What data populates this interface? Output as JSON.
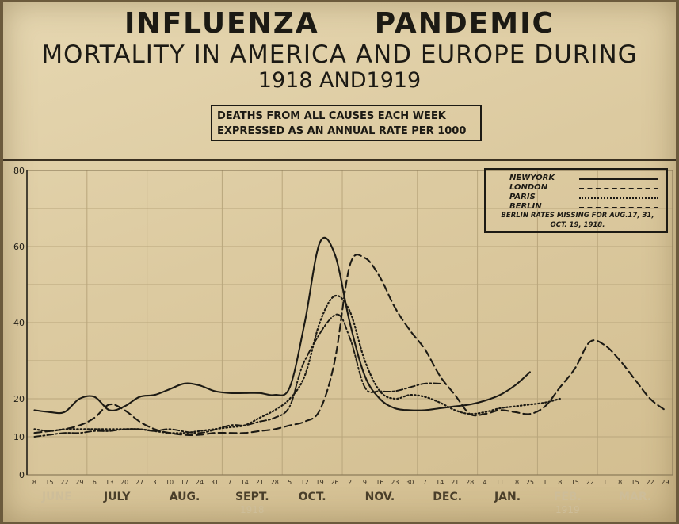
{
  "header": {
    "title_line1_a": "INFLUENZA",
    "title_line1_b": "PANDEMIC",
    "title_line2": "MORTALITY IN AMERICA AND EUROPE DURING",
    "title_line3": "1918 AND1919",
    "subtitle_line1": "DEATHS FROM ALL CAUSES EACH WEEK",
    "subtitle_line2": "EXPRESSED AS AN ANNUAL RATE PER 1000"
  },
  "legend": {
    "items": [
      {
        "name": "NEWYORK",
        "style": "solid"
      },
      {
        "name": "LONDON",
        "style": "dashed"
      },
      {
        "name": "PARIS",
        "style": "dotted"
      },
      {
        "name": "BERLIN",
        "style": "dash-dot"
      }
    ],
    "note_line1": "BERLIN RATES MISSING FOR AUG.17, 31,",
    "note_line2": "OCT. 19, 1918."
  },
  "colors": {
    "ink": "#1c1a14",
    "paper": "#dccaa0",
    "grid": "#b9a67c",
    "faded_label": "#cdbd99"
  },
  "chart_data": {
    "type": "line",
    "title": "INFLUENZA PANDEMIC MORTALITY IN AMERICA AND EUROPE DURING 1918 AND1919",
    "ylabel": "",
    "xlabel": "",
    "ylim": [
      0,
      80
    ],
    "yticks": [
      "0",
      "10",
      "20",
      "40",
      "60",
      "80"
    ],
    "grid": true,
    "legend_position": "top-right",
    "x_week_labels": [
      "8",
      "15",
      "22",
      "29",
      "6",
      "13",
      "20",
      "27",
      "3",
      "10",
      "17",
      "24",
      "31",
      "7",
      "14",
      "21",
      "28",
      "5",
      "12",
      "19",
      "26",
      "2",
      "9",
      "16",
      "23",
      "30",
      "7",
      "14",
      "21",
      "28",
      "4",
      "11",
      "18",
      "25",
      "1",
      "8",
      "15",
      "22",
      "1",
      "8",
      "15",
      "22",
      "29"
    ],
    "months": [
      {
        "label": "JUNE",
        "faded": true
      },
      {
        "label": "JULY",
        "faded": false
      },
      {
        "label": "AUG.",
        "faded": false
      },
      {
        "label": "SEPT.",
        "faded": false
      },
      {
        "label": "OCT.",
        "faded": false
      },
      {
        "label": "NOV.",
        "faded": false
      },
      {
        "label": "DEC.",
        "faded": false
      },
      {
        "label": "JAN.",
        "faded": false
      },
      {
        "label": "FEB.",
        "faded": true
      },
      {
        "label": "MAR.",
        "faded": true
      }
    ],
    "year_labels": [
      "1918",
      "1919"
    ],
    "series": [
      {
        "name": "NEWYORK",
        "style": "solid",
        "x": [
          "Jun 8",
          "Jun 15",
          "Jun 22",
          "Jun 29",
          "Jul 6",
          "Jul 13",
          "Jul 20",
          "Jul 27",
          "Aug 3",
          "Aug 10",
          "Aug 17",
          "Aug 24",
          "Aug 31",
          "Sep 7",
          "Sep 14",
          "Sep 21",
          "Sep 28",
          "Oct 5",
          "Oct 12",
          "Oct 19",
          "Oct 26",
          "Nov 2",
          "Nov 9",
          "Nov 16",
          "Nov 23",
          "Nov 30",
          "Dec 7",
          "Dec 14",
          "Dec 21",
          "Dec 28",
          "Jan 4",
          "Jan 11",
          "Jan 18",
          "Jan 25"
        ],
        "values": [
          17,
          16.5,
          16.5,
          20,
          20.5,
          17,
          18,
          20.5,
          21,
          22.5,
          24,
          23.5,
          22,
          21.5,
          21.5,
          21.5,
          21,
          23,
          40,
          61,
          58,
          40,
          26,
          20,
          17.5,
          17,
          17,
          17.5,
          18,
          18.5,
          19.5,
          21,
          23.5,
          27
        ]
      },
      {
        "name": "LONDON",
        "style": "dashed",
        "x": [
          "Jun 8",
          "Jun 15",
          "Jun 22",
          "Jun 29",
          "Jul 6",
          "Jul 13",
          "Jul 20",
          "Jul 27",
          "Aug 3",
          "Aug 10",
          "Aug 17",
          "Aug 24",
          "Aug 31",
          "Sep 7",
          "Sep 14",
          "Sep 21",
          "Sep 28",
          "Oct 5",
          "Oct 12",
          "Oct 19",
          "Oct 26",
          "Nov 2",
          "Nov 9",
          "Nov 16",
          "Nov 23",
          "Nov 30",
          "Dec 7",
          "Dec 14",
          "Dec 21",
          "Dec 28",
          "Jan 4",
          "Jan 11",
          "Jan 18",
          "Jan 25",
          "Feb 1",
          "Feb 8",
          "Feb 15",
          "Feb 22",
          "Mar 1",
          "Mar 8",
          "Mar 15",
          "Mar 22",
          "Mar 29"
        ],
        "values": [
          11,
          11.5,
          12,
          13,
          15,
          18.5,
          17,
          14,
          12,
          11,
          10.5,
          10.5,
          11,
          11,
          11,
          11.5,
          12,
          13,
          14,
          17,
          30,
          55,
          57,
          52,
          44,
          38,
          33,
          26,
          21,
          16,
          16,
          17,
          16.5,
          16,
          18,
          23,
          28,
          35,
          34,
          30,
          25,
          20,
          17
        ]
      },
      {
        "name": "PARIS",
        "style": "dotted",
        "x": [
          "Jun 8",
          "Jun 15",
          "Jun 22",
          "Jun 29",
          "Jul 6",
          "Jul 13",
          "Jul 20",
          "Jul 27",
          "Aug 3",
          "Aug 10",
          "Aug 17",
          "Aug 24",
          "Aug 31",
          "Sep 7",
          "Sep 14",
          "Sep 21",
          "Sep 28",
          "Oct 5",
          "Oct 12",
          "Oct 19",
          "Oct 26",
          "Nov 2",
          "Nov 9",
          "Nov 16",
          "Nov 23",
          "Nov 30",
          "Dec 7",
          "Dec 14",
          "Dec 21",
          "Dec 28",
          "Jan 4",
          "Jan 11",
          "Jan 18",
          "Jan 25",
          "Feb 1",
          "Feb 8"
        ],
        "values": [
          12,
          11.5,
          12,
          12,
          12,
          12,
          12,
          12,
          11.5,
          11,
          11,
          11.5,
          12,
          12.5,
          13,
          15,
          17,
          20,
          26,
          40,
          47,
          43,
          30,
          22,
          20,
          21,
          20.5,
          19,
          17,
          16,
          16.5,
          17.5,
          18,
          18.5,
          19,
          20
        ]
      },
      {
        "name": "BERLIN",
        "style": "dash-dot",
        "x": [
          "Jun 8",
          "Jun 15",
          "Jun 22",
          "Jun 29",
          "Jul 6",
          "Jul 13",
          "Jul 20",
          "Jul 27",
          "Aug 3",
          "Aug 10",
          "Aug 24",
          "Sep 7",
          "Sep 14",
          "Sep 21",
          "Sep 28",
          "Oct 5",
          "Oct 12",
          "Oct 26",
          "Nov 2",
          "Nov 9",
          "Nov 16",
          "Nov 23",
          "Nov 30",
          "Dec 7",
          "Dec 14"
        ],
        "values": [
          10,
          10.5,
          11,
          11,
          11.5,
          11.5,
          12,
          12,
          11.5,
          12,
          11,
          13,
          13,
          14,
          15,
          18,
          30,
          42,
          36,
          23,
          22,
          22,
          23,
          24,
          24
        ]
      }
    ]
  }
}
